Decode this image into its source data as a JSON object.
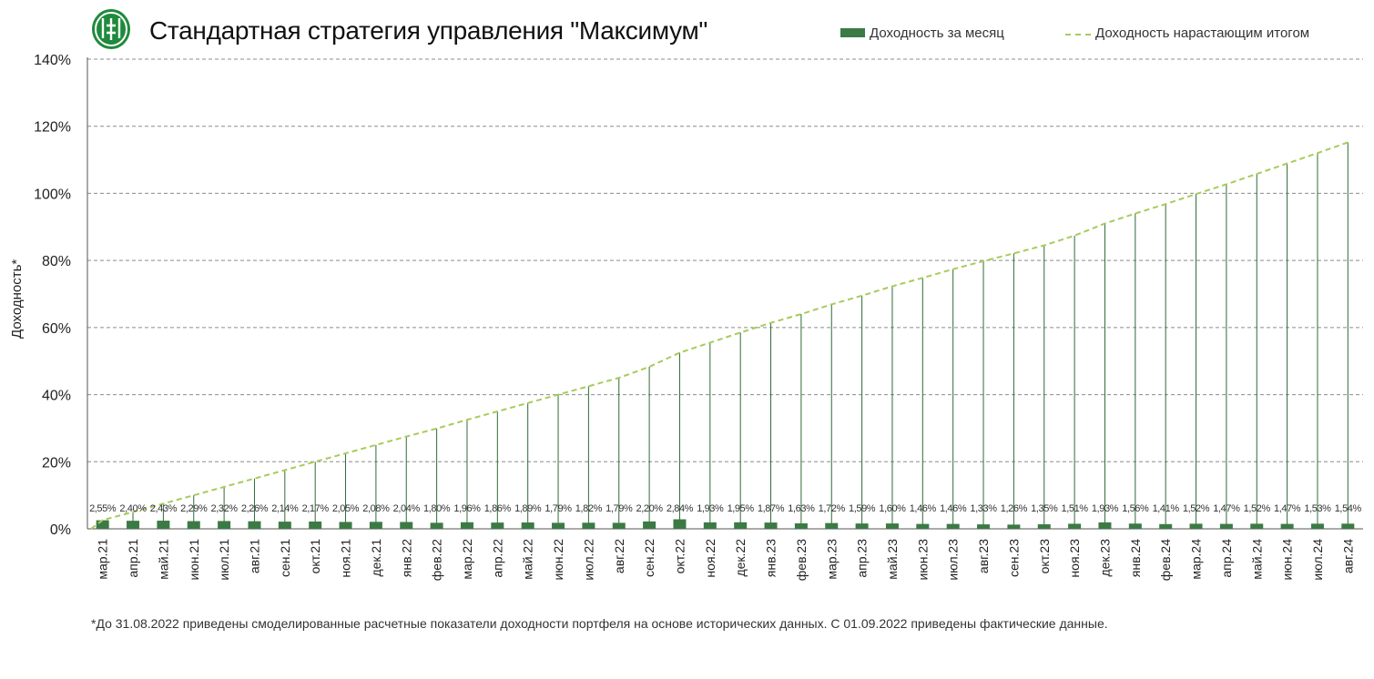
{
  "header": {
    "title": "Стандартная стратегия управления \"Максимум\"",
    "legend_monthly": "Доходность за месяц",
    "legend_cumulative": "Доходность нарастающим итогом"
  },
  "footnote": "*До 31.08.2022 приведены смоделированные расчетные показатели доходности портфеля на основе исторических данных. С 01.09.2022 приведены фактические данные.",
  "colors": {
    "bar": "#3c7a45",
    "line": "#a6cc5a",
    "stem": "#2f6b36",
    "grid": "#8c8c8c",
    "logo": "#1f8a3c"
  },
  "chart_data": {
    "type": "bar",
    "ylabel": "Доходность*",
    "ylim": [
      0,
      140
    ],
    "yticks": [
      "0%",
      "20%",
      "40%",
      "60%",
      "80%",
      "100%",
      "120%",
      "140%"
    ],
    "grid": true,
    "legend_position": "top-right",
    "categories": [
      "мар.21",
      "апр.21",
      "май.21",
      "июн.21",
      "июл.21",
      "авг.21",
      "сен.21",
      "окт.21",
      "ноя.21",
      "дек.21",
      "янв.22",
      "фев.22",
      "мар.22",
      "апр.22",
      "май.22",
      "июн.22",
      "июл.22",
      "авг.22",
      "сен.22",
      "окт.22",
      "ноя.22",
      "дек.22",
      "янв.23",
      "фев.23",
      "мар.23",
      "апр.23",
      "май.23",
      "июн.23",
      "июл.23",
      "авг.23",
      "сен.23",
      "окт.23",
      "ноя.23",
      "дек.23",
      "янв.24",
      "фев.24",
      "мар.24",
      "апр.24",
      "май.24",
      "июн.24",
      "июл.24",
      "авг.24"
    ],
    "series": [
      {
        "name": "Доходность за месяц",
        "type": "bar",
        "values": [
          2.55,
          2.4,
          2.43,
          2.29,
          2.32,
          2.26,
          2.14,
          2.17,
          2.05,
          2.08,
          2.04,
          1.8,
          1.96,
          1.86,
          1.89,
          1.79,
          1.82,
          1.79,
          2.2,
          2.84,
          1.93,
          1.95,
          1.87,
          1.63,
          1.72,
          1.59,
          1.6,
          1.46,
          1.46,
          1.33,
          1.26,
          1.35,
          1.51,
          1.93,
          1.56,
          1.41,
          1.52,
          1.47,
          1.52,
          1.47,
          1.53,
          1.54
        ],
        "labels": [
          "2,55%",
          "2,40%",
          "2,43%",
          "2,29%",
          "2,32%",
          "2,26%",
          "2,14%",
          "2,17%",
          "2,05%",
          "2,08%",
          "2,04%",
          "1,80%",
          "1,96%",
          "1,86%",
          "1,89%",
          "1,79%",
          "1,82%",
          "1,79%",
          "2,20%",
          "2,84%",
          "1,93%",
          "1,95%",
          "1,87%",
          "1,63%",
          "1,72%",
          "1,59%",
          "1,60%",
          "1,46%",
          "1,46%",
          "1,33%",
          "1,26%",
          "1,35%",
          "1,51%",
          "1,93%",
          "1,56%",
          "1,41%",
          "1,52%",
          "1,47%",
          "1,52%",
          "1,47%",
          "1,53%",
          "1,54%"
        ]
      },
      {
        "name": "Доходность нарастающим итогом",
        "type": "line",
        "style": "dashed",
        "values": [
          2.6,
          5.0,
          7.5,
          10.0,
          12.5,
          15.0,
          17.5,
          20.0,
          22.5,
          25.0,
          27.5,
          29.9,
          32.5,
          35.0,
          37.5,
          40.0,
          42.5,
          45.0,
          48.3,
          52.5,
          55.5,
          58.5,
          61.4,
          64.0,
          66.9,
          69.5,
          72.3,
          74.8,
          77.4,
          79.8,
          82.1,
          84.5,
          87.4,
          91.0,
          94.0,
          96.8,
          99.8,
          102.7,
          105.8,
          108.9,
          112.0,
          115.2
        ]
      }
    ]
  }
}
